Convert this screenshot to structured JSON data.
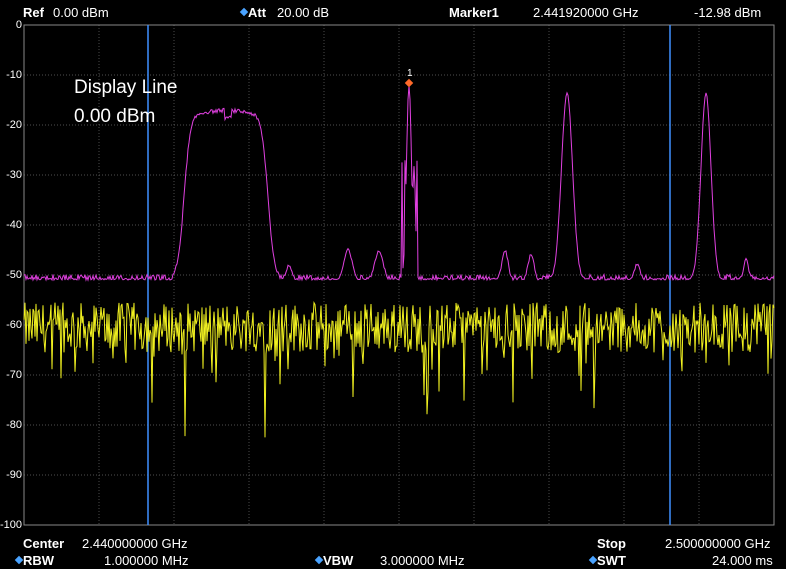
{
  "header": {
    "ref_label": "Ref",
    "ref_value": "0.00 dBm",
    "att_label": "Att",
    "att_value": "20.00 dB",
    "marker_label": "Marker1",
    "marker_freq": "2.441920000 GHz",
    "marker_level": "-12.98 dBm"
  },
  "display_line": {
    "title": "Display Line",
    "value": "0.00 dBm"
  },
  "marker_number": "1",
  "y_axis_labels": [
    "0",
    "-10",
    "-20",
    "-30",
    "-40",
    "-50",
    "-60",
    "-70",
    "-80",
    "-90",
    "-100"
  ],
  "footer": {
    "center_label": "Center",
    "center_value": "2.440000000 GHz",
    "stop_label": "Stop",
    "stop_value": "2.500000000 GHz",
    "rbw_label": "RBW",
    "rbw_value": "1.000000 MHz",
    "vbw_label": "VBW",
    "vbw_value": "3.000000 MHz",
    "swt_label": "SWT",
    "swt_value": "24.000 ms"
  },
  "colors": {
    "trace_magenta": "#e040e0",
    "trace_yellow": "#f0f020",
    "vline_blue": "#3f8fff",
    "grid": "#6a6a6a",
    "marker": "#ff6a2a"
  }
}
